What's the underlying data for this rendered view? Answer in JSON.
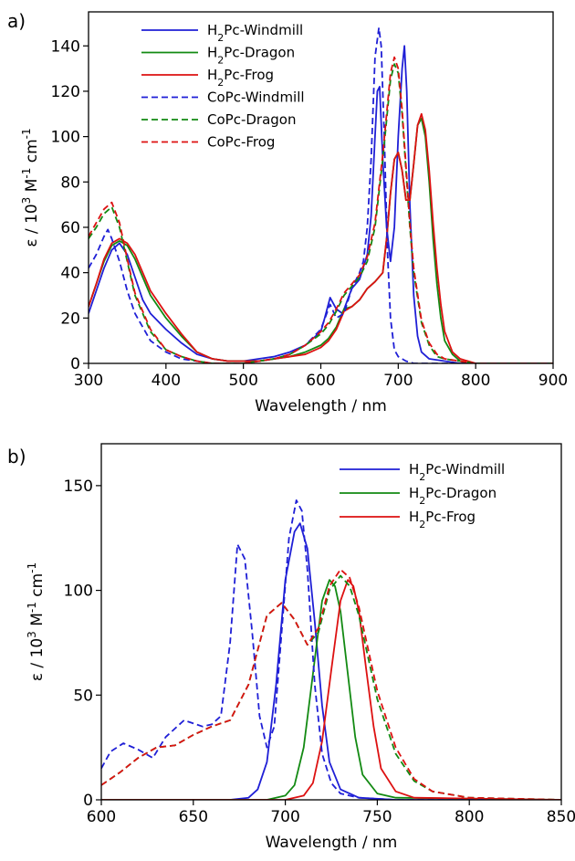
{
  "chart_data": [
    {
      "type": "line",
      "panel_label": "a)",
      "xlabel": "Wavelength / nm",
      "ylabel": {
        "main": "ε / 10",
        "exp1": "3",
        "mid": " M",
        "exp2": "-1",
        "tail": " cm",
        "exp3": "-1"
      },
      "xlim": [
        300,
        900
      ],
      "ylim": [
        0,
        155
      ],
      "xticks": [
        300,
        400,
        500,
        600,
        700,
        800,
        900
      ],
      "yticks": [
        0,
        20,
        40,
        60,
        80,
        100,
        120,
        140
      ],
      "legend_position": "top-left",
      "series": [
        {
          "name": "H2Pc-Windmill",
          "label": {
            "pre": "H",
            "sub": "2",
            "post": "Pc-Windmill"
          },
          "color": "#1f1fd6",
          "dash": "solid",
          "x": [
            300,
            310,
            320,
            330,
            340,
            350,
            360,
            370,
            380,
            400,
            420,
            440,
            460,
            480,
            500,
            520,
            540,
            560,
            580,
            600,
            605,
            612,
            620,
            628,
            640,
            650,
            660,
            665,
            670,
            673,
            676,
            680,
            685,
            690,
            695,
            700,
            705,
            708,
            711,
            715,
            720,
            725,
            730,
            740,
            760,
            780,
            800,
            900
          ],
          "y": [
            22,
            32,
            42,
            50,
            53,
            48,
            38,
            28,
            22,
            15,
            9,
            4,
            2,
            1,
            1,
            2,
            3,
            5,
            8,
            14,
            20,
            29,
            24,
            22,
            33,
            37,
            48,
            65,
            100,
            120,
            122,
            90,
            60,
            45,
            60,
            100,
            130,
            140,
            120,
            70,
            30,
            12,
            5,
            2,
            1,
            0,
            0,
            0
          ]
        },
        {
          "name": "H2Pc-Dragon",
          "label": {
            "pre": "H",
            "sub": "2",
            "post": "Pc-Dragon"
          },
          "color": "#138a13",
          "dash": "solid",
          "x": [
            300,
            310,
            320,
            330,
            340,
            350,
            360,
            370,
            380,
            400,
            420,
            440,
            460,
            480,
            500,
            520,
            540,
            560,
            580,
            600,
            610,
            620,
            630,
            640,
            650,
            660,
            670,
            680,
            685,
            690,
            695,
            700,
            705,
            710,
            715,
            720,
            725,
            730,
            735,
            740,
            745,
            750,
            755,
            760,
            770,
            780,
            790,
            800,
            900
          ],
          "y": [
            25,
            35,
            45,
            52,
            54,
            52,
            46,
            38,
            30,
            20,
            12,
            5,
            2,
            1,
            1,
            1,
            2,
            3,
            5,
            8,
            11,
            16,
            24,
            25,
            28,
            33,
            36,
            40,
            55,
            75,
            90,
            93,
            85,
            72,
            72,
            88,
            105,
            108,
            100,
            80,
            55,
            35,
            20,
            10,
            4,
            1,
            0,
            0,
            0
          ]
        },
        {
          "name": "H2Pc-Frog",
          "label": {
            "pre": "H",
            "sub": "2",
            "post": "Pc-Frog"
          },
          "color": "#dd1111",
          "dash": "solid",
          "x": [
            300,
            310,
            320,
            330,
            340,
            350,
            360,
            370,
            380,
            400,
            420,
            440,
            460,
            480,
            500,
            520,
            540,
            560,
            580,
            600,
            610,
            620,
            630,
            640,
            650,
            660,
            670,
            680,
            685,
            690,
            695,
            700,
            705,
            710,
            715,
            720,
            725,
            730,
            735,
            740,
            745,
            750,
            755,
            760,
            770,
            780,
            790,
            800,
            900
          ],
          "y": [
            25,
            35,
            46,
            53,
            55,
            53,
            48,
            40,
            32,
            22,
            13,
            5,
            2,
            1,
            1,
            1,
            2,
            3,
            4,
            7,
            10,
            15,
            23,
            25,
            28,
            33,
            36,
            40,
            55,
            75,
            90,
            93,
            85,
            72,
            72,
            88,
            105,
            110,
            103,
            85,
            62,
            42,
            26,
            14,
            5,
            2,
            1,
            0,
            0
          ]
        },
        {
          "name": "CoPc-Windmill",
          "label": {
            "pre": "CoPc-Windmill",
            "sub": "",
            "post": ""
          },
          "color": "#1f1fd6",
          "dash": "dashed",
          "x": [
            300,
            310,
            320,
            325,
            330,
            340,
            350,
            360,
            380,
            400,
            420,
            440,
            460,
            480,
            500,
            520,
            540,
            560,
            580,
            600,
            612,
            620,
            630,
            640,
            650,
            655,
            660,
            665,
            670,
            675,
            678,
            682,
            686,
            690,
            695,
            700,
            710,
            720,
            740,
            760,
            800,
            900
          ],
          "y": [
            42,
            48,
            56,
            59,
            55,
            45,
            32,
            22,
            10,
            5,
            2,
            1,
            0,
            0,
            0,
            1,
            2,
            4,
            8,
            15,
            26,
            20,
            22,
            33,
            40,
            45,
            60,
            90,
            135,
            148,
            140,
            100,
            50,
            20,
            6,
            3,
            1,
            0,
            0,
            0,
            0,
            0
          ]
        },
        {
          "name": "CoPc-Dragon",
          "label": {
            "pre": "CoPc-Dragon",
            "sub": "",
            "post": ""
          },
          "color": "#138a13",
          "dash": "dashed",
          "x": [
            300,
            310,
            320,
            330,
            340,
            350,
            360,
            380,
            400,
            420,
            440,
            460,
            480,
            500,
            520,
            540,
            560,
            580,
            600,
            610,
            620,
            630,
            640,
            650,
            660,
            670,
            680,
            690,
            695,
            700,
            705,
            710,
            715,
            720,
            730,
            740,
            750,
            760,
            780,
            800,
            900
          ],
          "y": [
            55,
            60,
            66,
            69,
            60,
            45,
            30,
            14,
            6,
            3,
            1,
            0,
            0,
            0,
            1,
            2,
            4,
            8,
            13,
            17,
            23,
            30,
            34,
            38,
            45,
            60,
            90,
            125,
            132,
            128,
            110,
            85,
            60,
            40,
            18,
            8,
            3,
            2,
            1,
            0,
            0
          ]
        },
        {
          "name": "CoPc-Frog",
          "label": {
            "pre": "CoPc-Frog",
            "sub": "",
            "post": ""
          },
          "color": "#dd1111",
          "dash": "dashed",
          "x": [
            300,
            310,
            320,
            330,
            340,
            350,
            360,
            380,
            400,
            420,
            440,
            460,
            480,
            500,
            520,
            540,
            560,
            580,
            600,
            610,
            620,
            630,
            640,
            650,
            660,
            670,
            680,
            690,
            695,
            700,
            705,
            710,
            715,
            720,
            730,
            740,
            750,
            760,
            780,
            800,
            900
          ],
          "y": [
            56,
            62,
            68,
            71,
            62,
            46,
            31,
            15,
            6,
            3,
            1,
            0,
            0,
            0,
            1,
            2,
            4,
            8,
            14,
            18,
            24,
            31,
            35,
            39,
            47,
            62,
            92,
            128,
            135,
            130,
            112,
            87,
            62,
            42,
            19,
            9,
            4,
            2,
            1,
            0,
            0
          ]
        }
      ]
    },
    {
      "type": "line",
      "panel_label": "b)",
      "xlabel": "Wavelength / nm",
      "ylabel": {
        "main": "ε / 10",
        "exp1": "3",
        "mid": " M",
        "exp2": "-1",
        "tail": " cm",
        "exp3": "-1"
      },
      "xlim": [
        600,
        850
      ],
      "ylim": [
        0,
        170
      ],
      "xticks": [
        600,
        650,
        700,
        750,
        800,
        850
      ],
      "yticks": [
        0,
        50,
        100,
        150
      ],
      "legend_position": "top-right",
      "series": [
        {
          "name": "H2Pc-Windmill",
          "label": {
            "pre": "H",
            "sub": "2",
            "post": "Pc-Windmill"
          },
          "color": "#1f1fd6",
          "dash": "solid",
          "in_legend": true,
          "x": [
            600,
            670,
            680,
            685,
            690,
            695,
            700,
            705,
            708,
            712,
            716,
            720,
            724,
            730,
            740,
            760,
            850
          ],
          "y": [
            0,
            0,
            1,
            5,
            18,
            55,
            105,
            128,
            132,
            120,
            85,
            45,
            18,
            5,
            1,
            0,
            0
          ]
        },
        {
          "name": "H2Pc-Dragon",
          "label": {
            "pre": "H",
            "sub": "2",
            "post": "Pc-Dragon"
          },
          "color": "#138a13",
          "dash": "solid",
          "in_legend": true,
          "x": [
            600,
            690,
            700,
            705,
            710,
            715,
            720,
            724,
            727,
            730,
            734,
            738,
            742,
            750,
            760,
            850
          ],
          "y": [
            0,
            0,
            2,
            7,
            25,
            60,
            95,
            105,
            102,
            90,
            60,
            30,
            12,
            3,
            1,
            0
          ]
        },
        {
          "name": "H2Pc-Frog",
          "label": {
            "pre": "H",
            "sub": "2",
            "post": "Pc-Frog"
          },
          "color": "#dd1111",
          "dash": "solid",
          "in_legend": true,
          "x": [
            600,
            700,
            710,
            715,
            720,
            725,
            730,
            734,
            737,
            740,
            744,
            748,
            752,
            760,
            770,
            850
          ],
          "y": [
            0,
            0,
            2,
            8,
            28,
            62,
            95,
            105,
            102,
            90,
            62,
            35,
            15,
            4,
            1,
            0
          ]
        },
        {
          "name": "CoPc-Windmill",
          "label": {
            "pre": "CoPc-Windmill",
            "sub": "",
            "post": ""
          },
          "color": "#1f1fd6",
          "dash": "dashed",
          "in_legend": false,
          "x": [
            600,
            605,
            612,
            620,
            628,
            635,
            645,
            655,
            660,
            665,
            670,
            674,
            678,
            682,
            686,
            690,
            694,
            698,
            702,
            706,
            709,
            712,
            716,
            720,
            725,
            730,
            740,
            760,
            850
          ],
          "y": [
            15,
            23,
            27,
            24,
            20,
            30,
            38,
            35,
            36,
            40,
            75,
            122,
            115,
            80,
            40,
            25,
            35,
            80,
            125,
            143,
            138,
            110,
            55,
            22,
            8,
            3,
            1,
            0,
            0
          ]
        },
        {
          "name": "CoPc-Dragon",
          "label": {
            "pre": "CoPc-Dragon",
            "sub": "",
            "post": ""
          },
          "color": "#138a13",
          "dash": "dashed",
          "in_legend": false,
          "x": [
            600,
            610,
            620,
            630,
            640,
            650,
            660,
            670,
            680,
            690,
            698,
            705,
            712,
            718,
            724,
            730,
            735,
            740,
            745,
            750,
            760,
            770,
            780,
            800,
            850
          ],
          "y": [
            7,
            13,
            20,
            25,
            26,
            31,
            35,
            38,
            55,
            88,
            94,
            86,
            74,
            80,
            100,
            107,
            102,
            88,
            68,
            48,
            22,
            9,
            4,
            1,
            0
          ]
        },
        {
          "name": "CoPc-Frog",
          "label": {
            "pre": "CoPc-Frog",
            "sub": "",
            "post": ""
          },
          "color": "#dd1111",
          "dash": "dashed",
          "in_legend": false,
          "x": [
            600,
            610,
            620,
            630,
            640,
            650,
            660,
            670,
            680,
            690,
            698,
            705,
            712,
            718,
            724,
            730,
            735,
            740,
            745,
            750,
            760,
            770,
            780,
            800,
            850
          ],
          "y": [
            7,
            13,
            20,
            25,
            26,
            31,
            35,
            38,
            55,
            88,
            94,
            86,
            74,
            82,
            102,
            110,
            106,
            92,
            72,
            52,
            25,
            10,
            4,
            1,
            0
          ]
        }
      ]
    }
  ]
}
